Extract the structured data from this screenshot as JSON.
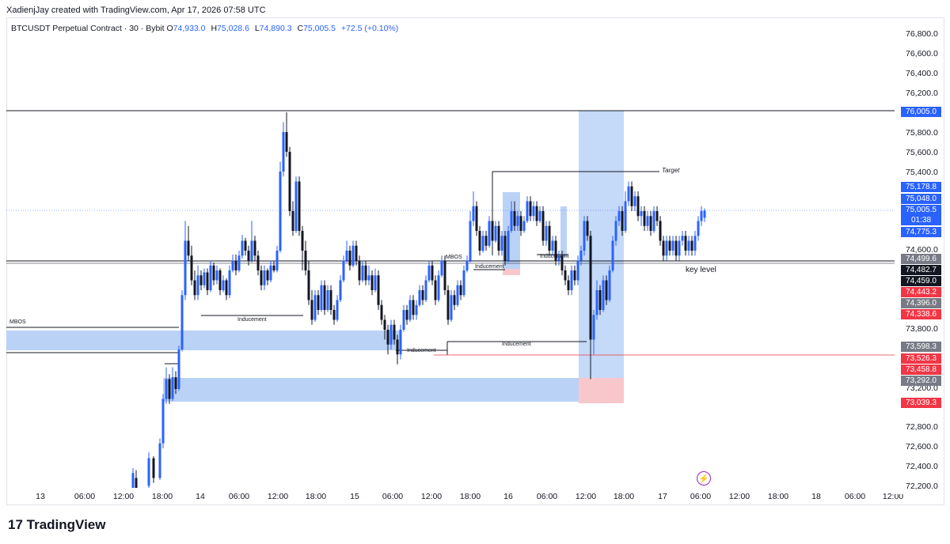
{
  "attribution": "XadienjJay created with TradingView.com, Apr 17, 2026 07:58 UTC",
  "legend": {
    "symbol": "BTCUSDT Perpetual Contract · 30 · Bybit",
    "o_label": "O",
    "o": "74,933.0",
    "h_label": "H",
    "h": "75,028.6",
    "l_label": "L",
    "l": "74,890.3",
    "c_label": "C",
    "c": "75,005.5",
    "change": "+72.5 (+0.10%)"
  },
  "price_axis": {
    "ticks": [
      "76,800.0",
      "76,600.0",
      "76,400.0",
      "76,200.0",
      "75,800.0",
      "75,600.0",
      "75,400.0",
      "74,600.0",
      "73,800.0",
      "73,200.0",
      "72,800.0",
      "72,600.0",
      "72,400.0",
      "72,200.0"
    ],
    "badges": [
      {
        "text": "76,005.0",
        "color": "#2962ff"
      },
      {
        "text": "75,178.8",
        "color": "#2962ff"
      },
      {
        "text": "75,048.0",
        "color": "#2962ff"
      },
      {
        "text": "75,005.5",
        "color": "#2962ff"
      },
      {
        "text": "01:38",
        "color": "#2962ff"
      },
      {
        "text": "74,775.3",
        "color": "#2962ff"
      },
      {
        "text": "74,499.6",
        "color": "#787b86"
      },
      {
        "text": "74,482.7",
        "color": "#131722"
      },
      {
        "text": "74,459.0",
        "color": "#131722"
      },
      {
        "text": "74,443.2",
        "color": "#f23645"
      },
      {
        "text": "74,396.0",
        "color": "#787b86"
      },
      {
        "text": "74,338.6",
        "color": "#f23645"
      },
      {
        "text": "73,598.3",
        "color": "#787b86"
      },
      {
        "text": "73,526.3",
        "color": "#f23645"
      },
      {
        "text": "73,458.8",
        "color": "#f23645"
      },
      {
        "text": "73,292.0",
        "color": "#787b86"
      },
      {
        "text": "73,039.3",
        "color": "#f23645"
      }
    ]
  },
  "time_axis": [
    "13",
    "06:00",
    "12:00",
    "18:00",
    "14",
    "06:00",
    "12:00",
    "18:00",
    "15",
    "06:00",
    "12:00",
    "18:00",
    "16",
    "06:00",
    "12:00",
    "18:00",
    "17",
    "06:00",
    "12:00",
    "18:00",
    "18",
    "06:00",
    "12:00"
  ],
  "annotations": {
    "mbos_left": "MBOS",
    "mbos_mid": "MBOS",
    "inducement_1": "Inducement",
    "inducement_2": "Inducement",
    "inducement_3": "Inducement",
    "inducement_4": "Inducement",
    "inducement_5": "Inducement",
    "target": "Target",
    "key_level": "key level"
  },
  "footer": {
    "brand": "TradingView",
    "logo_glyph": "17"
  },
  "colors": {
    "up": "#2962ff",
    "up_light": "#5b9cf6",
    "down": "#131722",
    "zone": "#bbd2f7",
    "red_zone": "#f8c7cc",
    "accent": "#2962ff"
  }
}
